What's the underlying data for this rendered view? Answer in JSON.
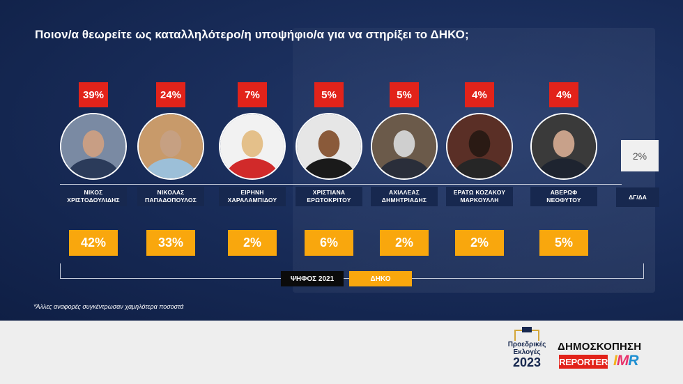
{
  "title": "Ποιον/α θεωρείτε ως καταλληλότερο/η υποψήφιο/α για να στηρίξει το ΔΗΚΟ;",
  "chart_data": {
    "type": "bar",
    "categories": [
      [
        "ΝΙΚΟΣ",
        "ΧΡΙΣΤΟΔΟΥΛΙΔΗΣ"
      ],
      [
        "ΝΙΚΟΛΑΣ",
        "ΠΑΠΑΔΟΠΟΥΛΟΣ"
      ],
      [
        "ΕΙΡΗΝΗ",
        "ΧΑΡΑΛΑΜΠΙΔΟΥ"
      ],
      [
        "ΧΡΙΣΤΙΑΝΑ",
        "ΕΡΩΤΟΚΡΙΤΟΥ"
      ],
      [
        "ΑΧΙΛΛΕΑΣ",
        "ΔΗΜΗΤΡΙΑΔΗΣ"
      ],
      [
        "ΕΡΑΤΩ ΚΟΖΑΚΟΥ",
        "ΜΑΡΚΟΥΛΛΗ"
      ],
      [
        "ΑΒΕΡΩΦ",
        "ΝΕΟΦΥΤΟΥ"
      ]
    ],
    "series": [
      {
        "name": "",
        "labels": [
          "39%",
          "24%",
          "7%",
          "5%",
          "5%",
          "4%",
          "4%"
        ],
        "color": "#e2231a"
      },
      {
        "name": "ΔΗΚΟ",
        "labels": [
          "42%",
          "33%",
          "2%",
          "6%",
          "2%",
          "2%",
          "5%"
        ],
        "color": "#f9a70d"
      }
    ],
    "other": {
      "label": "ΔΓ/ΔΑ",
      "value": "2%"
    },
    "legend": [
      "ΨΗΦΟΣ 2021",
      "ΔΗΚΟ"
    ],
    "footnote": "*Άλλες αναφορές συγκέντρωσαν χαμηλότερα ποσοστά"
  },
  "footer": {
    "logo_line1": "Προεδρικές",
    "logo_line2": "Εκλογές",
    "logo_year": "2023",
    "poll_title": "ΔΗΜΟΣΚΟΠΗΣΗ",
    "reporter": "REPORTER",
    "imr_i": "I",
    "imr_m": "M",
    "imr_r": "R"
  },
  "colors": {
    "background": "#172a56",
    "red": "#e2231a",
    "yellow": "#f9a70d"
  }
}
